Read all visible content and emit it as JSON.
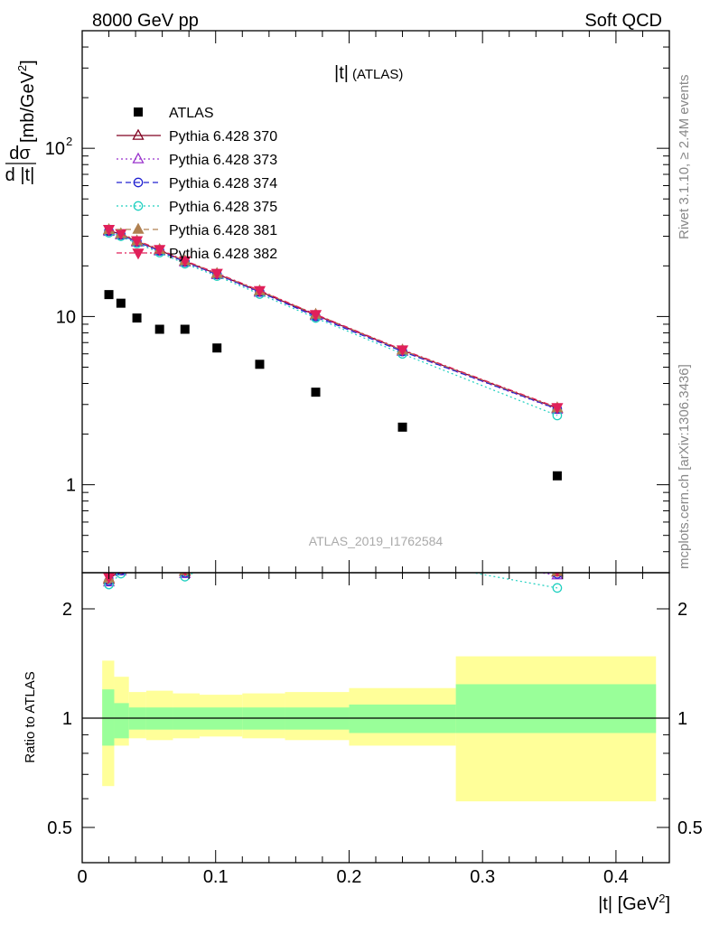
{
  "header": {
    "left": "8000 GeV pp",
    "right": "Soft QCD"
  },
  "side_text": {
    "rivet": "Rivet 3.1.10, ≥ 2.4M events",
    "mcplots": "mcplots.cern.ch [arXiv:1306.3436]"
  },
  "chart_data": {
    "type": "scatter",
    "title": "|t|",
    "subtitle": "(ATLAS)",
    "watermark": "ATLAS_2019_I1762584",
    "xlabel": "|t| [GeV",
    "xlabel_sup": "2",
    "xlabel_end": "]",
    "ylabel_top": "dσ",
    "ylabel_bottom": "d |t|",
    "ylabel_unit": "[mb/GeV",
    "ylabel_sup": "2",
    "ylabel_end": "]",
    "ratio_ylabel": "Ratio to ATLAS",
    "xlim": [
      0,
      0.44
    ],
    "ylim": [
      0.3,
      500
    ],
    "yscale": "log",
    "ratio_ylim": [
      0.5,
      2.0
    ],
    "x_ticks": [
      "0",
      "0.1",
      "0.2",
      "0.3",
      "0.4"
    ],
    "y_ticks": [
      "1",
      "10",
      "10"
    ],
    "y_tick_exp": "2",
    "ratio_ticks": [
      "0.5",
      "1",
      "2"
    ],
    "legend_position": "top-left",
    "data": {
      "name": "ATLAS",
      "color": "#000000",
      "x": [
        0.02,
        0.029,
        0.041,
        0.058,
        0.077,
        0.101,
        0.133,
        0.175,
        0.24,
        0.356
      ],
      "y": [
        13.5,
        12.0,
        9.8,
        8.4,
        8.4,
        6.5,
        5.2,
        3.55,
        2.2,
        1.13
      ]
    },
    "bands": {
      "x_edges": [
        0.015,
        0.024,
        0.035,
        0.048,
        0.068,
        0.088,
        0.12,
        0.152,
        0.2,
        0.28,
        0.43
      ],
      "inner_low": [
        0.84,
        0.88,
        0.93,
        0.93,
        0.93,
        0.93,
        0.93,
        0.93,
        0.91,
        0.91
      ],
      "inner_high": [
        1.2,
        1.1,
        1.07,
        1.07,
        1.07,
        1.07,
        1.07,
        1.07,
        1.09,
        1.24
      ],
      "outer_low": [
        0.65,
        0.84,
        0.88,
        0.87,
        0.88,
        0.89,
        0.88,
        0.87,
        0.84,
        0.59
      ],
      "outer_high": [
        1.44,
        1.3,
        1.18,
        1.19,
        1.17,
        1.16,
        1.17,
        1.18,
        1.21,
        1.48
      ],
      "inner_color": "#99ff99",
      "outer_color": "#ffff99"
    },
    "series": [
      {
        "name": "Pythia 6.428 370",
        "color": "#800020",
        "marker": "triangle-open",
        "dash": "",
        "x": [
          0.02,
          0.029,
          0.041,
          0.058,
          0.077,
          0.101,
          0.133,
          0.175,
          0.24,
          0.356
        ],
        "y": [
          32.5,
          30.8,
          28.0,
          24.8,
          21.3,
          17.9,
          14.1,
          10.2,
          6.3,
          2.85
        ]
      },
      {
        "name": "Pythia 6.428 373",
        "color": "#9932cc",
        "marker": "triangle-open",
        "dash": "2,3",
        "x": [
          0.02,
          0.029,
          0.041,
          0.058,
          0.077,
          0.101,
          0.133,
          0.175,
          0.24,
          0.356
        ],
        "y": [
          32.0,
          30.5,
          27.6,
          24.5,
          21.0,
          17.7,
          13.9,
          10.1,
          6.2,
          2.8
        ]
      },
      {
        "name": "Pythia 6.428 374",
        "color": "#2020d0",
        "marker": "circle-open",
        "dash": "6,4",
        "x": [
          0.02,
          0.029,
          0.041,
          0.058,
          0.077,
          0.101,
          0.133,
          0.175,
          0.24,
          0.356
        ],
        "y": [
          32.2,
          30.6,
          27.8,
          24.6,
          21.1,
          17.8,
          14.0,
          10.0,
          6.2,
          2.82
        ]
      },
      {
        "name": "Pythia 6.428 375",
        "color": "#20d0c0",
        "marker": "circle-open",
        "dash": "2,3",
        "x": [
          0.02,
          0.029,
          0.041,
          0.058,
          0.077,
          0.101,
          0.133,
          0.175,
          0.24,
          0.356
        ],
        "y": [
          31.5,
          30.0,
          27.2,
          24.0,
          20.6,
          17.4,
          13.6,
          9.8,
          6.0,
          2.58
        ]
      },
      {
        "name": "Pythia 6.428 381",
        "color": "#b08050",
        "marker": "triangle-filled",
        "dash": "6,4",
        "x": [
          0.02,
          0.029,
          0.041,
          0.058,
          0.077,
          0.101,
          0.133,
          0.175,
          0.24,
          0.356
        ],
        "y": [
          32.8,
          31.0,
          28.1,
          25.0,
          21.4,
          18.0,
          14.2,
          10.3,
          6.3,
          2.86
        ]
      },
      {
        "name": "Pythia 6.428 382",
        "color": "#e0205a",
        "marker": "triangle-down-filled",
        "dash": "6,3,2,3",
        "x": [
          0.02,
          0.029,
          0.041,
          0.058,
          0.077,
          0.101,
          0.133,
          0.175,
          0.24,
          0.356
        ],
        "y": [
          33.0,
          31.2,
          28.3,
          25.1,
          21.5,
          18.1,
          14.3,
          10.3,
          6.35,
          2.88
        ]
      }
    ]
  }
}
